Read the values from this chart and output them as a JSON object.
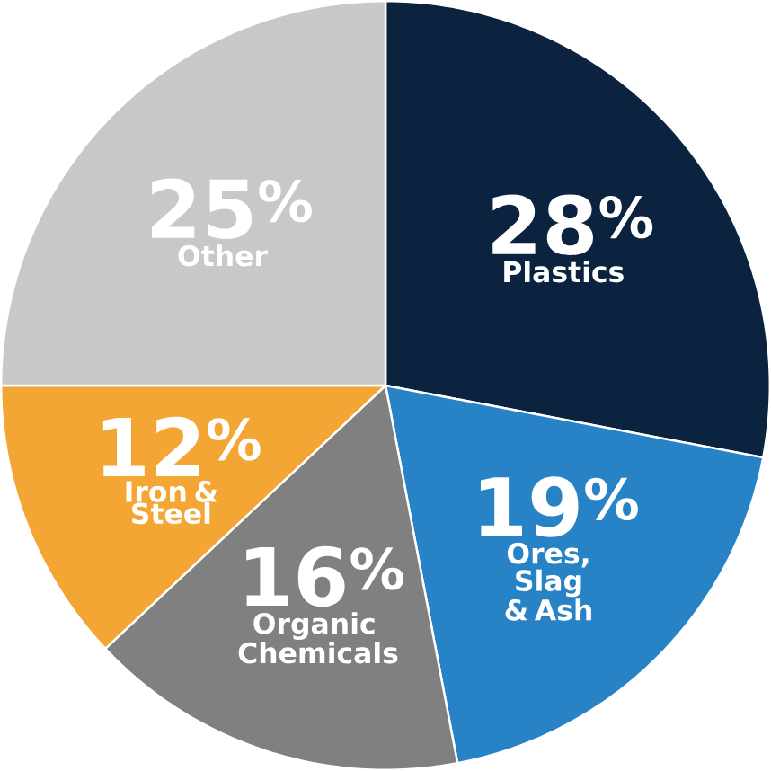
{
  "chart_data": {
    "type": "pie",
    "categories": [
      "Plastics",
      "Ores, Slag & Ash",
      "Organic Chemicals",
      "Iron & Steel",
      "Other"
    ],
    "values": [
      28,
      19,
      16,
      12,
      25
    ],
    "value_labels": [
      "28$^{%}$",
      "19$^{%}$",
      "16$^{%}$",
      "12$^{%}$",
      "25$^{%}$"
    ],
    "colors": [
      "#0c2340",
      "#2783c6",
      "#808080",
      "#f4a634",
      "#c8c8c8"
    ]
  }
}
